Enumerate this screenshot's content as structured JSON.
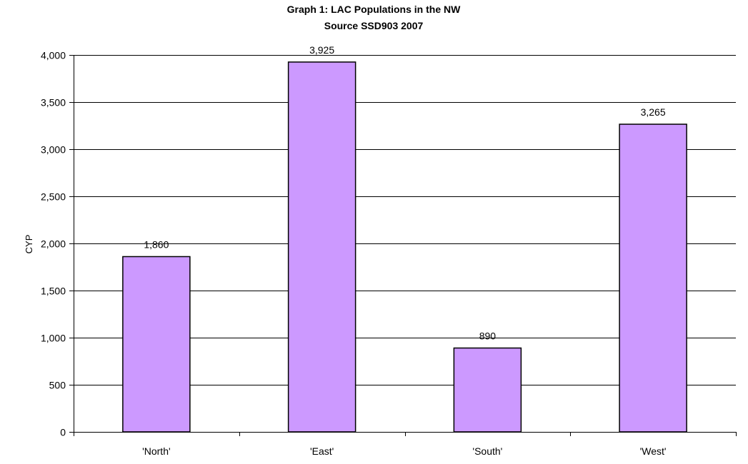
{
  "chart_data": {
    "type": "bar",
    "title": "Graph 1: LAC Populations in the NW",
    "subtitle": "Source SSD903 2007",
    "xlabel": "",
    "ylabel": "CYP",
    "categories": [
      "'North'",
      "'East'",
      "'South'",
      "'West'"
    ],
    "values": [
      1860,
      3925,
      890,
      3265
    ],
    "value_labels": [
      "1,860",
      "3,925",
      "890",
      "3,265"
    ],
    "ylim": [
      0,
      4000
    ],
    "yticks": [
      0,
      500,
      1000,
      1500,
      2000,
      2500,
      3000,
      3500,
      4000
    ],
    "ytick_labels": [
      "0",
      "500",
      "1,000",
      "1,500",
      "2,000",
      "2,500",
      "3,000",
      "3,500",
      "4,000"
    ],
    "grid": true,
    "legend": "none",
    "colors": {
      "bar_fill": "#cc99ff",
      "bar_stroke": "#000000",
      "grid": "#000000",
      "axis": "#000000"
    }
  }
}
